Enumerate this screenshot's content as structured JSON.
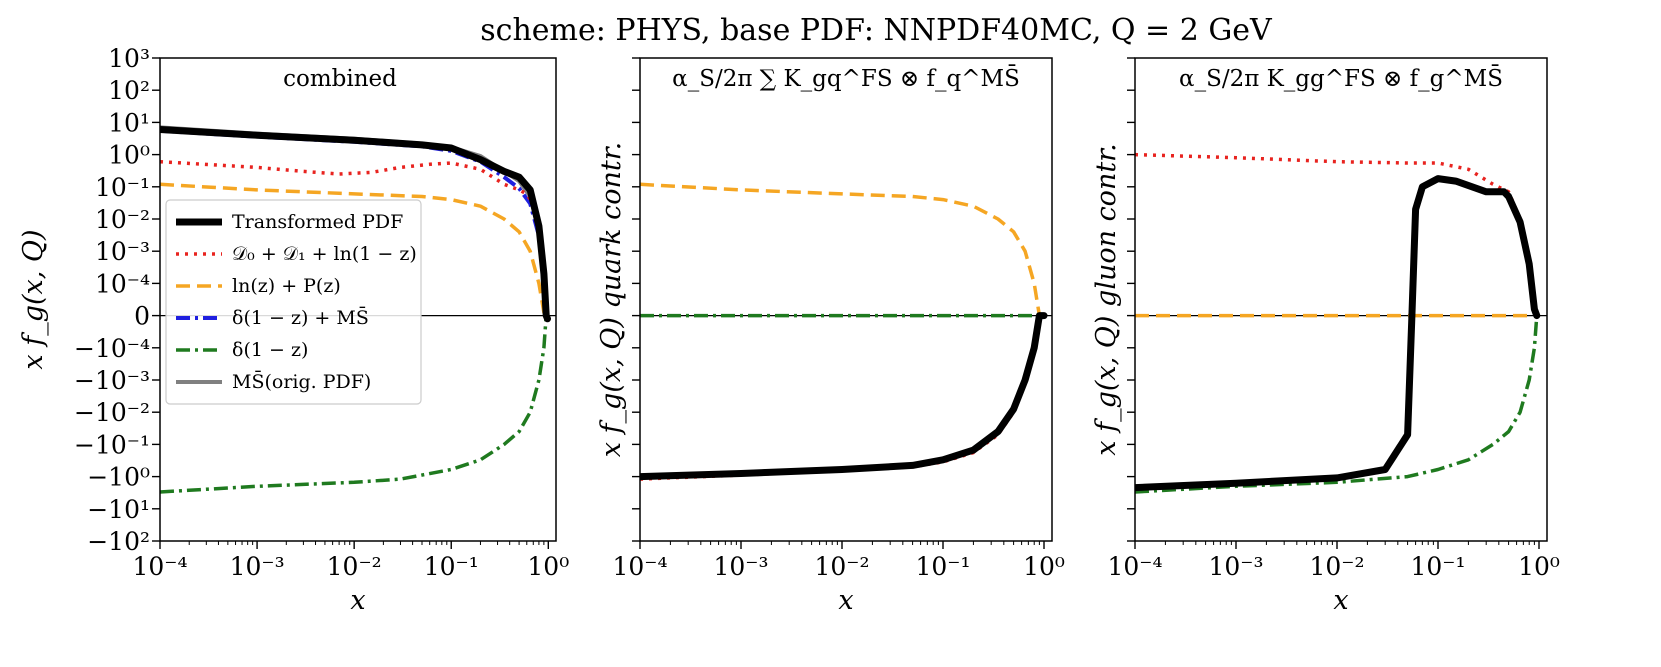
{
  "suptitle": "scheme: PHYS, base PDF: NNPDF40MC, Q = 2 GeV",
  "colors": {
    "transformed": "#000000",
    "d0d1ln": "#e8231f",
    "lnzPz": "#f5a623",
    "delta_msbar": "#1f1fe0",
    "delta": "#1f7a1f",
    "msbar": "#808080"
  },
  "legend": [
    {
      "key": "transformed",
      "label": "Transformed PDF",
      "style": "solid-thick"
    },
    {
      "key": "d0d1ln",
      "label": "𝒟₀ + 𝒟₁ + ln(1 − z)",
      "style": "dotted"
    },
    {
      "key": "lnzPz",
      "label": "ln(z) + P(z)",
      "style": "dashed"
    },
    {
      "key": "delta_msbar",
      "label": "δ(1 − z) + MS̄",
      "style": "dashdot"
    },
    {
      "key": "delta",
      "label": "δ(1 − z)",
      "style": "dashdot"
    },
    {
      "key": "msbar",
      "label": "MS̄(orig. PDF)",
      "style": "solid"
    }
  ],
  "chart_data": [
    {
      "type": "line",
      "title": "combined",
      "xlabel": "x",
      "ylabel": "x f_g(x, Q)",
      "xscale": "log",
      "yscale": "symlog",
      "xlim": [
        0.0001,
        1.2
      ],
      "ylim": [
        -100,
        1000
      ],
      "x_ticks": [
        "10⁻⁴",
        "10⁻³",
        "10⁻²",
        "10⁻¹",
        "10⁰"
      ],
      "y_ticks": [
        "10³",
        "10²",
        "10¹",
        "10⁰",
        "10⁻¹",
        "10⁻²",
        "10⁻³",
        "10⁻⁴",
        "0",
        "−10⁻⁴",
        "−10⁻³",
        "−10⁻²",
        "−10⁻¹",
        "−10⁰",
        "−10¹",
        "−10²"
      ],
      "legend_position": "center-left",
      "series": [
        {
          "key": "msbar",
          "x": [
            0.0001,
            0.001,
            0.01,
            0.05,
            0.1,
            0.2,
            0.35,
            0.5,
            0.65,
            0.8,
            0.9,
            0.95
          ],
          "y": [
            7,
            4.5,
            3.1,
            2.2,
            1.7,
            0.9,
            0.3,
            0.15,
            0.05,
            0.005,
            0.0003,
            5e-05
          ]
        },
        {
          "key": "delta_msbar",
          "x": [
            0.0001,
            0.001,
            0.01,
            0.05,
            0.1,
            0.2,
            0.35,
            0.5,
            0.65,
            0.8,
            0.9,
            0.95
          ],
          "y": [
            5.5,
            3.6,
            2.5,
            1.8,
            1.3,
            0.6,
            0.2,
            0.09,
            0.03,
            0.003,
            0.0002,
            3e-05
          ]
        },
        {
          "key": "d0d1ln",
          "x": [
            0.0001,
            0.001,
            0.003,
            0.007,
            0.015,
            0.03,
            0.06,
            0.1,
            0.2,
            0.35,
            0.5,
            0.6,
            0.75,
            0.85,
            0.92,
            0.96
          ],
          "y": [
            0.6,
            0.4,
            0.3,
            0.25,
            0.28,
            0.4,
            0.5,
            0.55,
            0.35,
            0.12,
            0.08,
            0.06,
            0.02,
            0.002,
            0.0002,
            3e-05
          ]
        },
        {
          "key": "lnzPz",
          "x": [
            0.0001,
            0.001,
            0.01,
            0.05,
            0.1,
            0.2,
            0.35,
            0.5,
            0.65,
            0.8,
            0.9,
            0.95
          ],
          "y": [
            0.12,
            0.08,
            0.06,
            0.05,
            0.04,
            0.025,
            0.01,
            0.004,
            0.001,
            0.0001,
            1e-05,
            0.0
          ]
        },
        {
          "key": "delta",
          "x": [
            0.0001,
            0.001,
            0.01,
            0.03,
            0.1,
            0.2,
            0.35,
            0.5,
            0.65,
            0.8,
            0.9,
            0.95
          ],
          "y": [
            -3,
            -2,
            -1.5,
            -1.2,
            -0.6,
            -0.3,
            -0.1,
            -0.04,
            -0.01,
            -0.001,
            -0.0001,
            0.0
          ]
        },
        {
          "key": "transformed",
          "x": [
            0.0001,
            0.001,
            0.01,
            0.05,
            0.1,
            0.2,
            0.35,
            0.5,
            0.65,
            0.8,
            0.9,
            0.95,
            0.98
          ],
          "y": [
            6,
            4,
            2.8,
            2.0,
            1.6,
            0.7,
            0.3,
            0.2,
            0.08,
            0.006,
            0.0002,
            0.0,
            -1e-05
          ]
        }
      ]
    },
    {
      "type": "line",
      "title": "α_S/2π ∑ K_gq^FS ⊗ f_q^MS̄",
      "xlabel": "x",
      "ylabel": "x f_g(x, Q)  quark contr.",
      "xscale": "log",
      "yscale": "symlog",
      "xlim": [
        0.0001,
        1.2
      ],
      "ylim": [
        -100,
        1000
      ],
      "x_ticks": [
        "10⁻⁴",
        "10⁻³",
        "10⁻²",
        "10⁻¹",
        "10⁰"
      ],
      "series": [
        {
          "key": "lnzPz",
          "x": [
            0.0001,
            0.001,
            0.01,
            0.05,
            0.1,
            0.2,
            0.35,
            0.5,
            0.65,
            0.8,
            0.9
          ],
          "y": [
            0.12,
            0.08,
            0.06,
            0.05,
            0.04,
            0.025,
            0.01,
            0.004,
            0.001,
            0.0001,
            0.0
          ]
        },
        {
          "key": "delta",
          "x": [
            0.0001,
            0.01,
            1.0
          ],
          "y": [
            0,
            0,
            0
          ]
        },
        {
          "key": "d0d1ln",
          "x": [
            0.0001,
            0.001,
            0.01,
            0.05,
            0.1,
            0.2,
            0.35,
            0.5,
            0.65,
            0.8,
            0.9
          ],
          "y": [
            -1.2,
            -0.9,
            -0.65,
            -0.5,
            -0.35,
            -0.18,
            -0.05,
            -0.01,
            -0.001,
            -0.0001,
            0.0
          ]
        },
        {
          "key": "transformed",
          "x": [
            0.0001,
            0.001,
            0.01,
            0.05,
            0.1,
            0.2,
            0.35,
            0.5,
            0.65,
            0.8,
            0.9,
            1.0
          ],
          "y": [
            -1.0,
            -0.8,
            -0.6,
            -0.45,
            -0.3,
            -0.15,
            -0.04,
            -0.008,
            -0.001,
            -0.0001,
            0.0,
            0.0
          ]
        }
      ]
    },
    {
      "type": "line",
      "title": "α_S/2π K_gg^FS ⊗ f_g^MS̄",
      "xlabel": "x",
      "ylabel": "x f_g(x, Q)  gluon contr.",
      "xscale": "log",
      "yscale": "symlog",
      "xlim": [
        0.0001,
        1.2
      ],
      "ylim": [
        -100,
        1000
      ],
      "x_ticks": [
        "10⁻⁴",
        "10⁻³",
        "10⁻²",
        "10⁻¹",
        "10⁰"
      ],
      "series": [
        {
          "key": "d0d1ln",
          "x": [
            0.0001,
            0.001,
            0.01,
            0.05,
            0.1,
            0.2,
            0.35,
            0.5,
            0.65,
            0.8,
            0.9,
            0.95
          ],
          "y": [
            1.0,
            0.8,
            0.6,
            0.55,
            0.55,
            0.35,
            0.12,
            0.07,
            0.01,
            0.0005,
            2e-05,
            0.0
          ]
        },
        {
          "key": "lnzPz",
          "x": [
            0.0001,
            0.01,
            1.0
          ],
          "y": [
            0,
            0,
            0
          ]
        },
        {
          "key": "delta",
          "x": [
            0.0001,
            0.001,
            0.01,
            0.05,
            0.1,
            0.2,
            0.35,
            0.5,
            0.65,
            0.8,
            0.9,
            0.95
          ],
          "y": [
            -3,
            -2,
            -1.5,
            -1,
            -0.6,
            -0.3,
            -0.1,
            -0.04,
            -0.01,
            -0.001,
            -0.0001,
            0.0
          ]
        },
        {
          "key": "transformed",
          "x": [
            0.0001,
            0.001,
            0.01,
            0.03,
            0.05,
            0.055,
            0.06,
            0.07,
            0.1,
            0.15,
            0.3,
            0.45,
            0.5,
            0.65,
            0.8,
            0.9,
            0.95
          ],
          "y": [
            -2.2,
            -1.6,
            -1.1,
            -0.6,
            -0.05,
            -1e-05,
            0.02,
            0.1,
            0.18,
            0.15,
            0.07,
            0.07,
            0.05,
            0.008,
            0.0004,
            2e-05,
            0.0
          ]
        }
      ]
    }
  ]
}
